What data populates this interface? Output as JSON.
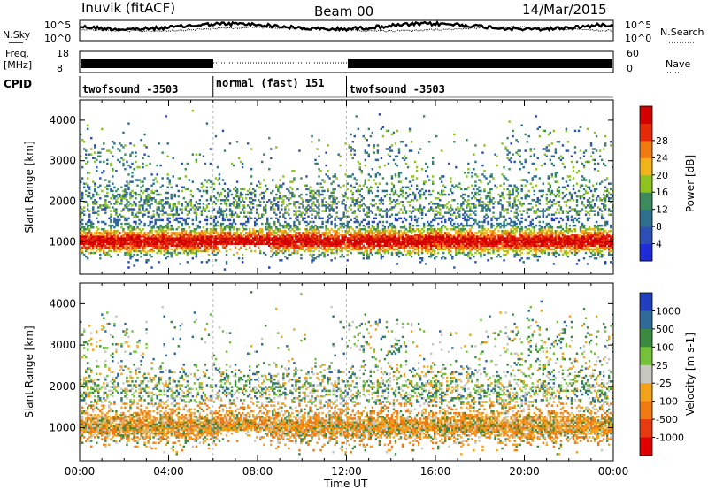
{
  "header": {
    "station": "Inuvik (fitACF)",
    "beam": "Beam 00",
    "date": "14/Mar/2015"
  },
  "nsky": {
    "label": "N.Sky",
    "tick_top": "10^5",
    "tick_bottom": "10^0"
  },
  "nsearch": {
    "label": "N.Search",
    "tick_top": "10^5",
    "tick_bottom": "10^0"
  },
  "freq": {
    "label_top": "Freq.",
    "label_bottom": "[MHz]",
    "tick_top": "18",
    "tick_bottom": "8"
  },
  "nave": {
    "label": "Nave",
    "tick_top": "60",
    "tick_bottom": "0"
  },
  "cpid": {
    "label": "CPID",
    "segments": [
      {
        "name": "twofsound -3503",
        "start_h": 0,
        "end_h": 6
      },
      {
        "name": "normal (fast) 151",
        "start_h": 6,
        "end_h": 12
      },
      {
        "name": "twofsound -3503",
        "start_h": 12,
        "end_h": 24
      }
    ]
  },
  "time_axis": {
    "label": "Time UT",
    "ticks": [
      "00:00",
      "04:00",
      "08:00",
      "12:00",
      "16:00",
      "20:00",
      "00:00"
    ]
  },
  "chart_data": [
    {
      "type": "heatmap",
      "name": "power",
      "ylabel": "Slant Range [km]",
      "yticks": [
        "1000",
        "2000",
        "3000",
        "4000"
      ],
      "ylim": [
        200,
        4500
      ],
      "xlim_hours": [
        0,
        24
      ],
      "colorbar": {
        "label": "Power [dB]",
        "ticks": [
          "4",
          "8",
          "12",
          "16",
          "20",
          "24",
          "28"
        ],
        "levels": [
          {
            "value": 0,
            "color": "#1f2bd6"
          },
          {
            "value": 4,
            "color": "#2d4fb4"
          },
          {
            "value": 8,
            "color": "#2e6f8e"
          },
          {
            "value": 12,
            "color": "#3c8a5e"
          },
          {
            "value": 16,
            "color": "#8ec21f"
          },
          {
            "value": 20,
            "color": "#f2b21a"
          },
          {
            "value": 24,
            "color": "#f07a10"
          },
          {
            "value": 28,
            "color": "#e52a0a"
          },
          {
            "value": 32,
            "color": "#d40000"
          }
        ]
      }
    },
    {
      "type": "heatmap",
      "name": "velocity",
      "ylabel": "Slant Range [km]",
      "yticks": [
        "1000",
        "2000",
        "3000",
        "4000"
      ],
      "ylim": [
        200,
        4500
      ],
      "xlim_hours": [
        0,
        24
      ],
      "colorbar": {
        "label": "Velocity [m s-1]",
        "ticks": [
          "1000",
          "500",
          "100",
          "25",
          "-25",
          "-100",
          "-500",
          "-1000"
        ],
        "levels": [
          {
            "value": 1000,
            "color": "#1f3fbf"
          },
          {
            "value": 500,
            "color": "#2f6a9a"
          },
          {
            "value": 100,
            "color": "#3b8a3f"
          },
          {
            "value": 25,
            "color": "#74c23a"
          },
          {
            "value": -25,
            "color": "#c8c8c0"
          },
          {
            "value": -100,
            "color": "#f2a31a"
          },
          {
            "value": -500,
            "color": "#f07a12"
          },
          {
            "value": -1000,
            "color": "#e83a10"
          },
          {
            "value": -1500,
            "color": "#e00000"
          }
        ]
      }
    }
  ]
}
